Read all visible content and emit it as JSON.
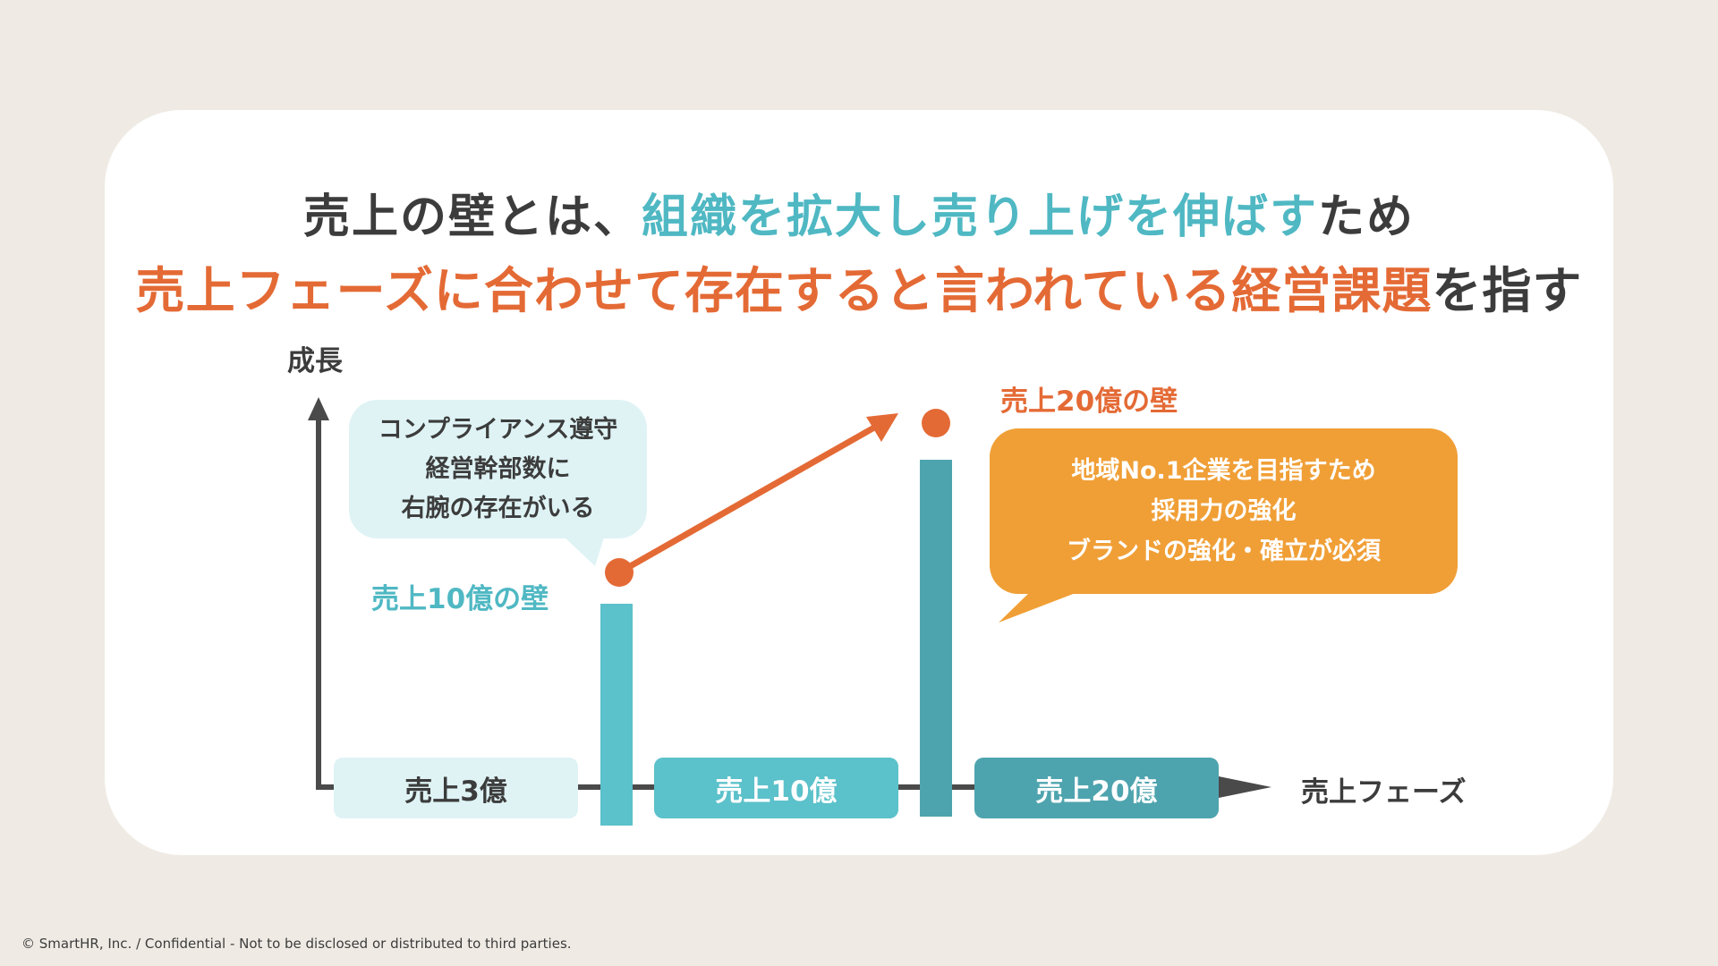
{
  "title": {
    "line1": {
      "part1": "売上の壁とは、",
      "part2_highlight": "組織を拡大し売り上げを伸ばす",
      "part3": "ため"
    },
    "line2": {
      "part1_highlight": "売上フェーズに合わせて存在すると言われている経営課題",
      "part2": "を指す"
    }
  },
  "axes": {
    "y_label": "成長",
    "x_label": "売上フェーズ"
  },
  "phases": [
    "売上3億",
    "売上10億",
    "売上20億"
  ],
  "walls": {
    "wall10": "売上10億の壁",
    "wall20": "売上20億の壁"
  },
  "bubble_left": {
    "lines": [
      "コンプライアンス遵守",
      "経営幹部数に",
      "右腕の存在がいる"
    ]
  },
  "bubble_right": {
    "lines": [
      "地域No.1企業を目指すため",
      "採用力の強化",
      "ブランドの強化・確立が必須"
    ]
  },
  "footer": "© SmartHR, Inc. / Confidential - Not to be disclosed or distributed to third parties.",
  "colors": {
    "background": "#efebe4",
    "text": "#3c3c3c",
    "teal": "#4fb8c3",
    "teal_light": "#dff3f5",
    "teal_dark": "#4ea4ae",
    "orange": "#e46a35",
    "orange_bubble": "#f09f36"
  }
}
